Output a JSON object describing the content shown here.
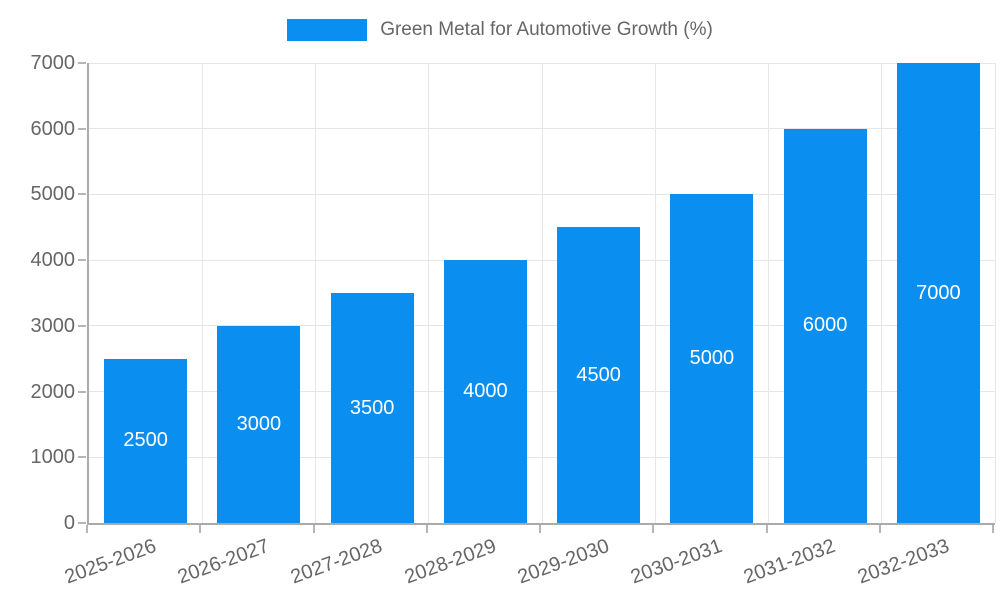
{
  "legend": {
    "label": "Green Metal for Automotive Growth (%)"
  },
  "chart_data": {
    "type": "bar",
    "title": "",
    "xlabel": "",
    "ylabel": "",
    "categories": [
      "2025-2026",
      "2026-2027",
      "2027-2028",
      "2028-2029",
      "2029-2030",
      "2030-2031",
      "2031-2032",
      "2032-2033"
    ],
    "series": [
      {
        "name": "Green Metal for Automotive Growth (%)",
        "values": [
          2500,
          3000,
          3500,
          4000,
          4500,
          5000,
          6000,
          7000
        ]
      }
    ],
    "data_labels": [
      "2500",
      "3000",
      "3500",
      "4000",
      "4500",
      "5000",
      "6000",
      "7000"
    ],
    "ylim": [
      0,
      7000
    ],
    "yticks": [
      0,
      1000,
      2000,
      3000,
      4000,
      5000,
      6000,
      7000
    ],
    "grid": "both",
    "legend_position": "top-center",
    "x_label_rotation_deg": -20
  },
  "colors": {
    "bar": "#0a8ff0",
    "grid": "#e6e6e6",
    "axis": "#aaaaaa",
    "tick": "#b5b5b5",
    "text": "#666666",
    "data_label": "#ffffff",
    "background": "#ffffff"
  }
}
